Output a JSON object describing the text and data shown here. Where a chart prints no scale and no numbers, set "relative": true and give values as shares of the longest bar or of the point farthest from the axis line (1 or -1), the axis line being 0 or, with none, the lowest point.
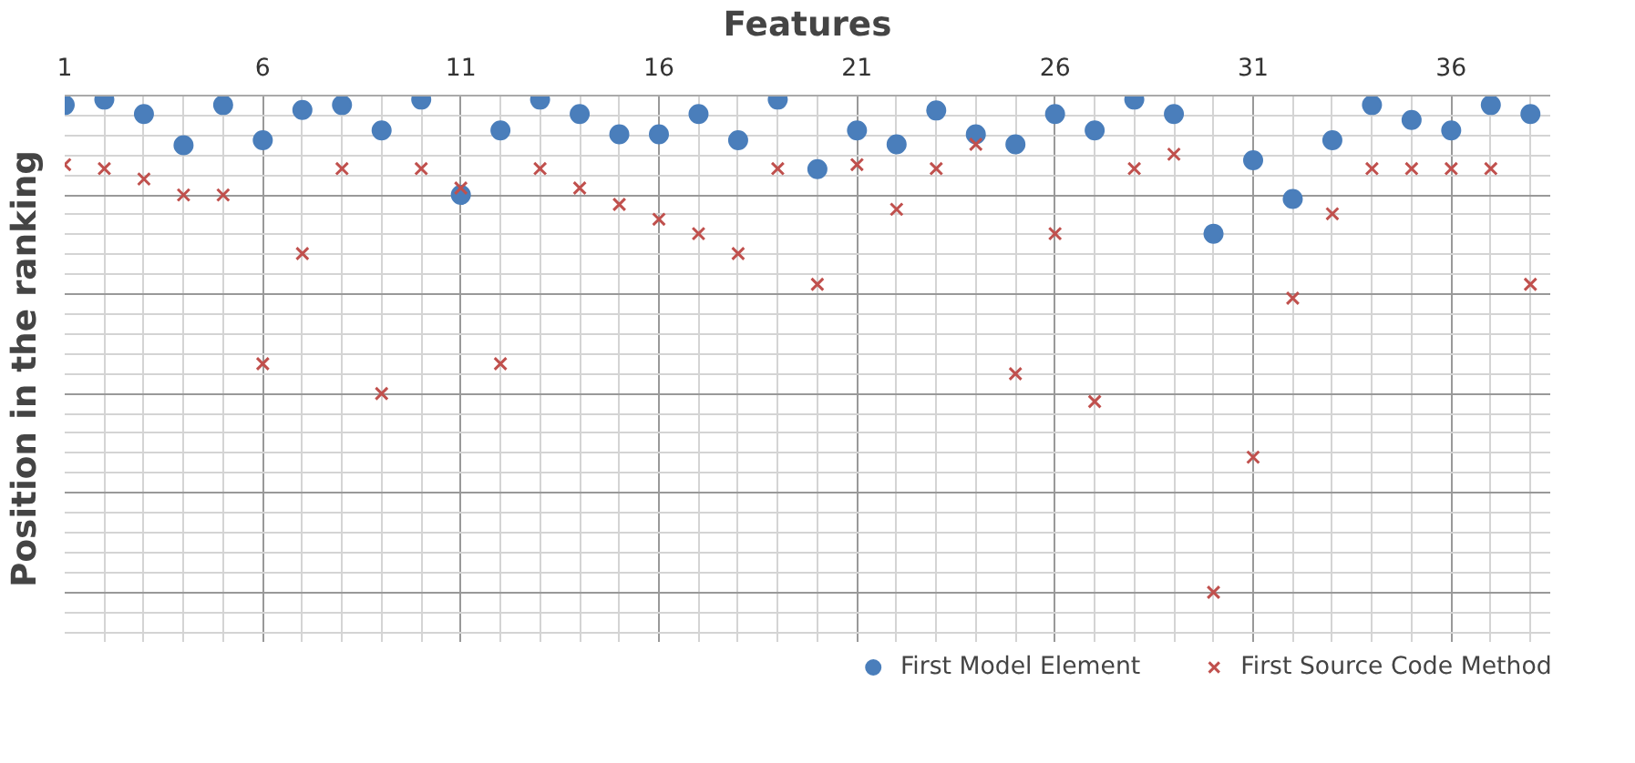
{
  "chart_data": {
    "type": "scatter",
    "xlabel": "Features",
    "ylabel": "Position in the ranking",
    "relative": true,
    "x": [
      1,
      2,
      3,
      4,
      5,
      6,
      7,
      8,
      9,
      10,
      11,
      12,
      13,
      14,
      15,
      16,
      17,
      18,
      19,
      20,
      21,
      22,
      23,
      24,
      25,
      26,
      27,
      28,
      29,
      30,
      31,
      32,
      33,
      34,
      35,
      36,
      37,
      38
    ],
    "xlim": [
      1,
      38.5
    ],
    "xticks": [
      1,
      6,
      11,
      16,
      21,
      26,
      31,
      36
    ],
    "series": [
      {
        "name": "First Model Element",
        "color": "#4a7ebb",
        "marker": "circle",
        "values": [
          -0.019,
          -0.008,
          -0.037,
          -0.1,
          -0.019,
          -0.09,
          -0.029,
          -0.019,
          -0.07,
          -0.008,
          -0.2,
          -0.07,
          -0.008,
          -0.037,
          -0.078,
          -0.078,
          -0.037,
          -0.09,
          -0.008,
          -0.148,
          -0.07,
          -0.098,
          -0.03,
          -0.078,
          -0.098,
          -0.037,
          -0.07,
          -0.008,
          -0.037,
          -0.278,
          -0.13,
          -0.208,
          -0.09,
          -0.019,
          -0.049,
          -0.07,
          -0.019,
          -0.037
        ]
      },
      {
        "name": "First Source Code Method",
        "color": "#c0504d",
        "marker": "cross",
        "values": [
          -0.139,
          -0.147,
          -0.168,
          -0.2,
          -0.2,
          -0.54,
          -0.318,
          -0.147,
          -0.6,
          -0.147,
          -0.186,
          -0.54,
          -0.147,
          -0.186,
          -0.219,
          -0.249,
          -0.278,
          -0.318,
          -0.147,
          -0.38,
          -0.139,
          -0.229,
          -0.147,
          -0.098,
          -0.56,
          -0.278,
          -0.616,
          -0.147,
          -0.118,
          -1,
          -0.728,
          -0.408,
          -0.238,
          -0.147,
          -0.147,
          -0.147,
          -0.147,
          -0.38
        ]
      }
    ],
    "grid": true,
    "legend": "bottom"
  }
}
